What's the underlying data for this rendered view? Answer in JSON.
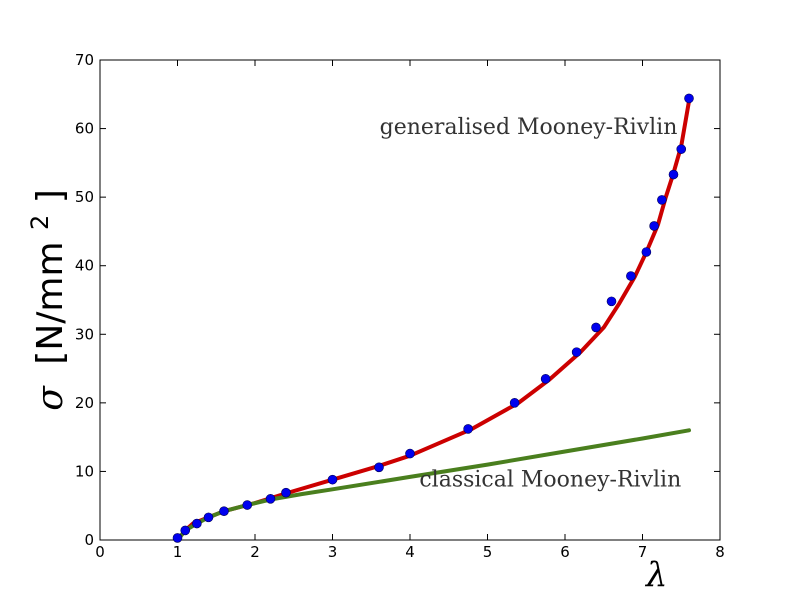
{
  "chart_data": {
    "type": "line",
    "xlim": [
      0,
      8
    ],
    "ylim": [
      0,
      70
    ],
    "xticks": [
      "0",
      "1",
      "2",
      "3",
      "4",
      "5",
      "6",
      "7",
      "8"
    ],
    "yticks": [
      "0",
      "10",
      "20",
      "30",
      "40",
      "50",
      "60",
      "70"
    ],
    "xlabel": "λ",
    "ylabel_symbol": "σ",
    "ylabel_units": "[N/mm",
    "ylabel_exp": "2",
    "ylabel_close": "]",
    "grid": false,
    "series": [
      {
        "name": "generalised Mooney-Rivlin",
        "style": "line",
        "color": "#cc0000",
        "x": [
          1.0,
          1.1,
          1.2,
          1.4,
          1.6,
          2.0,
          2.4,
          3.0,
          3.6,
          4.0,
          4.8,
          5.4,
          5.8,
          6.2,
          6.5,
          6.7,
          6.9,
          7.05,
          7.2,
          7.3,
          7.4,
          7.5,
          7.6
        ],
        "y": [
          0.0,
          1.4,
          2.4,
          3.3,
          4.2,
          5.4,
          6.8,
          8.8,
          10.8,
          12.3,
          16.2,
          20.0,
          23.4,
          27.4,
          31.0,
          34.5,
          38.4,
          42.0,
          46.0,
          50.0,
          53.5,
          57.5,
          64.0
        ]
      },
      {
        "name": "classical Mooney-Rivlin",
        "style": "line",
        "color": "#4a7f1e",
        "x": [
          1.0,
          1.1,
          1.25,
          1.4,
          1.6,
          1.9,
          2.2,
          2.6,
          3.0,
          4.0,
          5.0,
          6.0,
          7.0,
          7.6
        ],
        "y": [
          0.0,
          1.4,
          2.4,
          3.3,
          4.2,
          5.1,
          5.9,
          6.7,
          7.4,
          9.2,
          11.0,
          12.9,
          14.8,
          16.0
        ]
      },
      {
        "name": "data",
        "style": "markers",
        "color": "#0000ee",
        "x": [
          1.0,
          1.1,
          1.25,
          1.4,
          1.6,
          1.9,
          2.2,
          2.4,
          3.0,
          3.6,
          4.0,
          4.75,
          5.35,
          5.75,
          6.15,
          6.4,
          6.6,
          6.85,
          7.05,
          7.15,
          7.25,
          7.4,
          7.5,
          7.6
        ],
        "y": [
          0.3,
          1.4,
          2.4,
          3.3,
          4.2,
          5.1,
          6.0,
          6.9,
          8.8,
          10.6,
          12.6,
          16.2,
          20.0,
          23.5,
          27.4,
          31.0,
          34.8,
          38.5,
          42.0,
          45.8,
          49.6,
          53.3,
          57.0,
          64.4
        ]
      }
    ],
    "annotations": [
      {
        "text": "generalised Mooney-Rivlin",
        "x": 7.45,
        "y": 59.2
      },
      {
        "text": "classical Mooney-Rivlin",
        "x": 7.5,
        "y": 7.8
      }
    ]
  }
}
